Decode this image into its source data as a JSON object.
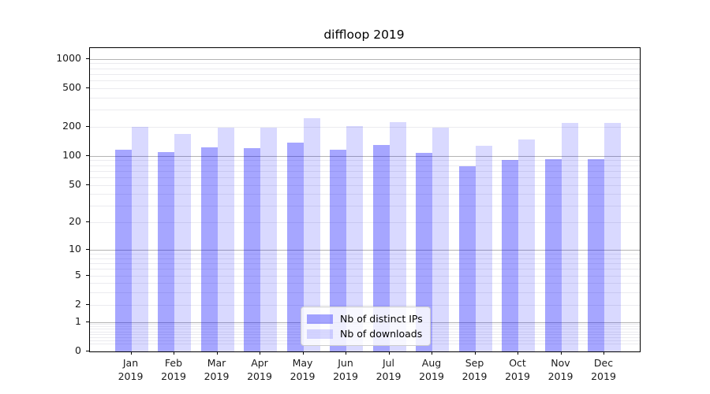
{
  "chart_data": {
    "type": "bar",
    "title": "diffloop 2019",
    "categories": [
      "Jan 2019",
      "Feb 2019",
      "Mar 2019",
      "Apr 2019",
      "May 2019",
      "Jun 2019",
      "Jul 2019",
      "Aug 2019",
      "Sep 2019",
      "Oct 2019",
      "Nov 2019",
      "Dec 2019"
    ],
    "series": [
      {
        "name": "Nb of distinct IPs",
        "color": "#0000ff59",
        "values": [
          115,
          110,
          123,
          120,
          138,
          116,
          130,
          108,
          78,
          90,
          92,
          92
        ]
      },
      {
        "name": "Nb of downloads",
        "color": "#0000ff26",
        "values": [
          200,
          170,
          197,
          197,
          245,
          205,
          225,
          195,
          128,
          148,
          220,
          220
        ]
      }
    ],
    "xlabel": "",
    "ylabel": "",
    "yscale": "symlog (positions follow log10(1+value))",
    "y_ticks": [
      0,
      1,
      2,
      5,
      10,
      20,
      50,
      100,
      200,
      500,
      1000
    ],
    "ylim": [
      0,
      1300
    ],
    "grid": "horizontal major gridlines at powers of 10 plus faint log minor gridlines",
    "legend_position": "lower center, inside plot",
    "colors": {
      "grid_major": "#b3b3b3",
      "grid_minor": "#ebebef",
      "axis": "#000000",
      "tick_text": "#1a1a1a",
      "legend_border": "#cccccc"
    }
  }
}
